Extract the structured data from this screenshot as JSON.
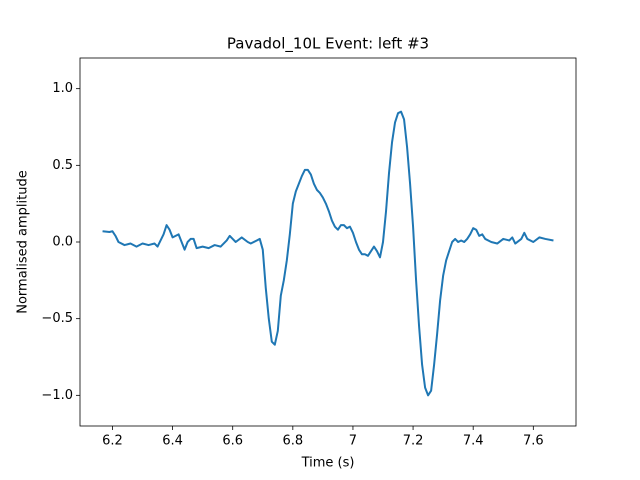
{
  "chart_data": {
    "type": "line",
    "title": "Pavadol_10L Event: left #3",
    "x_label": "Time (s)",
    "y_label": "Normalised amplitude",
    "xlim": [
      6.092,
      7.742
    ],
    "ylim": [
      -1.2,
      1.2
    ],
    "xticks": [
      6.2,
      6.4,
      6.6,
      6.8,
      7.0,
      7.2,
      7.4,
      7.6
    ],
    "yticks": [
      {
        "value": -1.0,
        "label": "−1.0"
      },
      {
        "value": -0.5,
        "label": "−0.5"
      },
      {
        "value": 0.0,
        "label": "0.0"
      },
      {
        "value": 0.5,
        "label": "0.5"
      },
      {
        "value": 1.0,
        "label": "1.0"
      }
    ],
    "series": [
      {
        "color": "#1f77b4",
        "x": [
          6.167,
          6.19,
          6.2,
          6.21,
          6.22,
          6.24,
          6.26,
          6.28,
          6.3,
          6.32,
          6.34,
          6.35,
          6.37,
          6.38,
          6.39,
          6.4,
          6.42,
          6.43,
          6.44,
          6.45,
          6.46,
          6.47,
          6.48,
          6.5,
          6.52,
          6.54,
          6.56,
          6.58,
          6.59,
          6.6,
          6.61,
          6.63,
          6.65,
          6.66,
          6.68,
          6.69,
          6.7,
          6.71,
          6.72,
          6.73,
          6.74,
          6.75,
          6.76,
          6.77,
          6.78,
          6.79,
          6.8,
          6.81,
          6.82,
          6.83,
          6.84,
          6.85,
          6.86,
          6.87,
          6.88,
          6.89,
          6.9,
          6.91,
          6.92,
          6.93,
          6.94,
          6.95,
          6.96,
          6.97,
          6.98,
          6.99,
          7.0,
          7.01,
          7.02,
          7.03,
          7.04,
          7.05,
          7.06,
          7.07,
          7.08,
          7.09,
          7.1,
          7.11,
          7.12,
          7.13,
          7.14,
          7.15,
          7.16,
          7.17,
          7.18,
          7.19,
          7.2,
          7.21,
          7.22,
          7.23,
          7.24,
          7.25,
          7.26,
          7.27,
          7.28,
          7.29,
          7.3,
          7.31,
          7.32,
          7.33,
          7.34,
          7.35,
          7.36,
          7.37,
          7.38,
          7.39,
          7.4,
          7.41,
          7.42,
          7.43,
          7.44,
          7.46,
          7.48,
          7.5,
          7.52,
          7.53,
          7.54,
          7.56,
          7.57,
          7.58,
          7.6,
          7.62,
          7.64,
          7.667
        ],
        "values": [
          0.07,
          0.065,
          0.07,
          0.04,
          0.0,
          -0.02,
          -0.01,
          -0.03,
          -0.01,
          -0.02,
          -0.01,
          -0.03,
          0.05,
          0.11,
          0.08,
          0.03,
          0.05,
          0.0,
          -0.05,
          0.0,
          0.02,
          0.02,
          -0.04,
          -0.03,
          -0.04,
          -0.02,
          -0.03,
          0.01,
          0.04,
          0.02,
          0.0,
          0.03,
          0.0,
          -0.01,
          0.01,
          0.02,
          -0.05,
          -0.3,
          -0.5,
          -0.65,
          -0.67,
          -0.58,
          -0.35,
          -0.25,
          -0.12,
          0.05,
          0.25,
          0.33,
          0.38,
          0.43,
          0.47,
          0.47,
          0.44,
          0.38,
          0.34,
          0.32,
          0.29,
          0.25,
          0.2,
          0.14,
          0.1,
          0.08,
          0.11,
          0.11,
          0.09,
          0.1,
          0.06,
          0.0,
          -0.05,
          -0.08,
          -0.08,
          -0.09,
          -0.06,
          -0.03,
          -0.06,
          -0.1,
          0.0,
          0.2,
          0.45,
          0.65,
          0.78,
          0.84,
          0.85,
          0.8,
          0.62,
          0.38,
          0.1,
          -0.25,
          -0.55,
          -0.8,
          -0.95,
          -1.0,
          -0.97,
          -0.8,
          -0.6,
          -0.38,
          -0.22,
          -0.12,
          -0.06,
          0.0,
          0.02,
          0.0,
          0.01,
          0.0,
          0.02,
          0.05,
          0.09,
          0.08,
          0.04,
          0.05,
          0.02,
          0.0,
          -0.01,
          0.02,
          0.01,
          0.03,
          -0.01,
          0.02,
          0.06,
          0.02,
          0.0,
          0.03,
          0.02,
          0.01
        ]
      }
    ]
  }
}
